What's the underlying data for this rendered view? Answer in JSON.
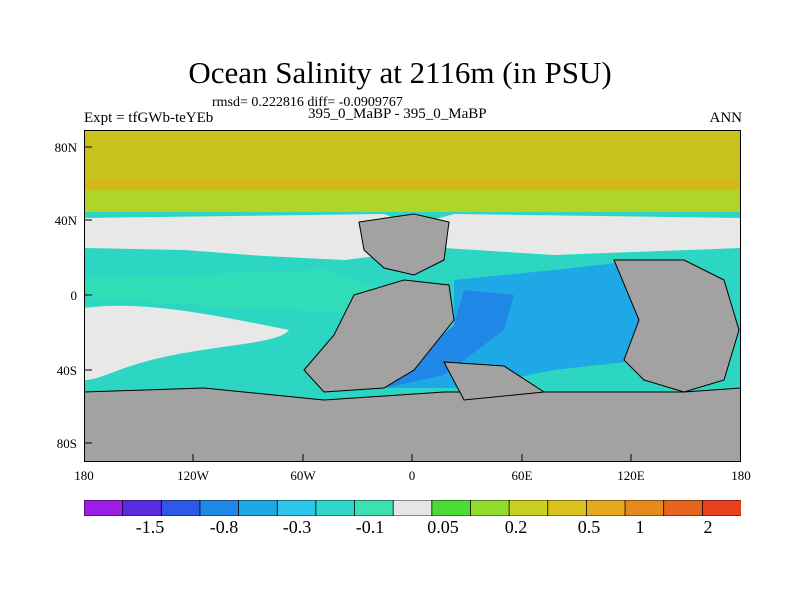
{
  "title": "Ocean Salinity at 2116m (in PSU)",
  "stats": "rmsd= 0.222816 diff= -0.0909767",
  "expt": "Expt = tfGWb-teYEb",
  "runs": "395_0_MaBP - 395_0_MaBP",
  "season": "ANN",
  "y_ticks": [
    "80N",
    "40N",
    "0",
    "40S",
    "80S"
  ],
  "x_ticks": [
    "180",
    "120W",
    "60W",
    "0",
    "60E",
    "120E",
    "180"
  ],
  "colorbar": {
    "colors": [
      "#9a1ee6",
      "#5a2be0",
      "#2f58e6",
      "#1f87e6",
      "#1fa8e6",
      "#2cc4e8",
      "#30d8cc",
      "#3de0b0",
      "#e6e6e6",
      "#4bdc36",
      "#90dc2b",
      "#c8d21e",
      "#dcc21d",
      "#e6a81e",
      "#e68a1e",
      "#e6651e",
      "#e6401e"
    ],
    "labels": [
      "-1.5",
      "-0.8",
      "-0.3",
      "-0.1",
      "0.05",
      "0.2",
      "0.5",
      "1",
      "2"
    ]
  },
  "legend_colors": {
    "land": "#a2a2a2",
    "white_band": "#e8e8e8",
    "fresh_deep": "#1f87e6",
    "fresh_mid": "#1fa8e6",
    "teal": "#2cd6c2",
    "aqua": "#30ddb6",
    "arctic_yellow": "#c8c21a",
    "arctic_green": "#b0d428"
  }
}
